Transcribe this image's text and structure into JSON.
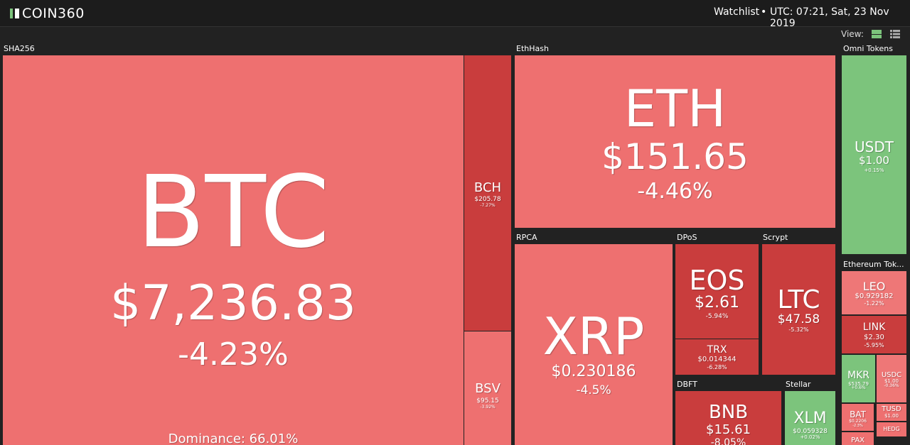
{
  "header": {
    "logo": "COIN360",
    "watchlist": "Watchlist",
    "separator": "•",
    "time": "UTC: 07:21, Sat, 23 Nov 2019",
    "view_label": "View:"
  },
  "groups": [
    {
      "label": "SHA256",
      "tiles": [
        {
          "name": "BTC",
          "price": "$7,236.83",
          "change": "-4.23%",
          "dominance": "Dominance: 66.01%"
        },
        {
          "name": "BCH",
          "price": "$205.78",
          "change": "-7.27%"
        },
        {
          "name": "BSV",
          "price": "$95.15",
          "change": "-3.92%"
        }
      ]
    },
    {
      "label": "EthHash",
      "tiles": [
        {
          "name": "ETH",
          "price": "$151.65",
          "change": "-4.46%"
        }
      ]
    },
    {
      "label": "Omni Tokens",
      "tiles": [
        {
          "name": "USDT",
          "price": "$1.00",
          "change": "+0.15%"
        }
      ]
    },
    {
      "label": "RPCA",
      "tiles": [
        {
          "name": "XRP",
          "price": "$0.230186",
          "change": "-4.5%"
        }
      ]
    },
    {
      "label": "DPoS",
      "tiles": [
        {
          "name": "EOS",
          "price": "$2.61",
          "change": "-5.94%"
        },
        {
          "name": "TRX",
          "price": "$0.014344",
          "change": "-6.28%"
        }
      ]
    },
    {
      "label": "Scrypt",
      "tiles": [
        {
          "name": "LTC",
          "price": "$47.58",
          "change": "-5.32%"
        }
      ]
    },
    {
      "label": "Ethereum Tok...",
      "tiles": [
        {
          "name": "LEO",
          "price": "$0.929182",
          "change": "-1.22%"
        },
        {
          "name": "LINK",
          "price": "$2.30",
          "change": "-5.95%"
        },
        {
          "name": "MKR",
          "price": "$535.79",
          "change": "+0.6%"
        },
        {
          "name": "USDC",
          "price": "$1.00",
          "change": "-0.36%"
        },
        {
          "name": "BAT",
          "price": "$0.2206",
          "change": "-2.3%"
        },
        {
          "name": "TUSD",
          "price": "$1.00"
        },
        {
          "name": "HEDG"
        },
        {
          "name": "PAX"
        }
      ]
    },
    {
      "label": "DBFT",
      "tiles": [
        {
          "name": "BNB",
          "price": "$15.61",
          "change": "-8.05%"
        }
      ]
    },
    {
      "label": "Stellar",
      "tiles": [
        {
          "name": "XLM",
          "price": "$0.059328",
          "change": "+0.02%"
        }
      ]
    }
  ]
}
